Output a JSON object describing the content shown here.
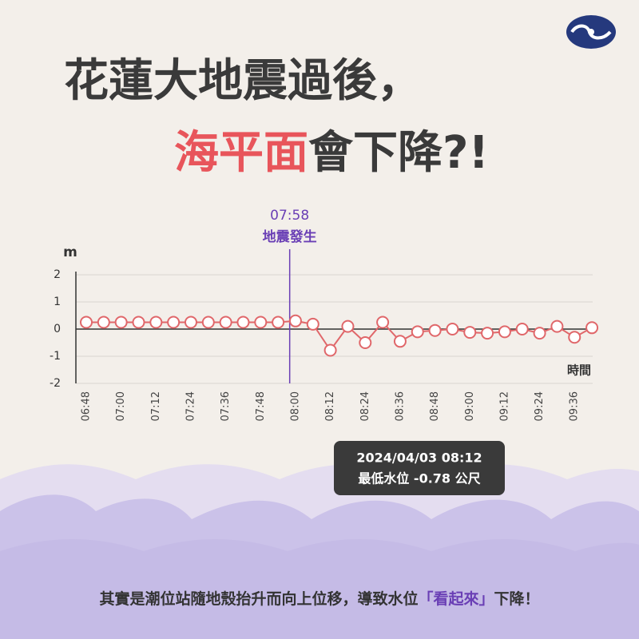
{
  "header": {
    "title_line1": "花蓮大地震過後，",
    "title_line2_highlight": "海平面",
    "title_line2_rest": "會下降?!"
  },
  "chart_data": {
    "type": "line",
    "y_label": "m",
    "x_label": "時間",
    "categories": [
      "06:48",
      null,
      "07:00",
      null,
      "07:12",
      null,
      "07:24",
      null,
      "07:36",
      null,
      "07:48",
      null,
      "08:00",
      null,
      "08:12",
      null,
      "08:24",
      null,
      "08:36",
      null,
      "08:48",
      null,
      "09:00",
      null,
      "09:12",
      null,
      "09:24",
      null,
      "09:36",
      null
    ],
    "series": [
      {
        "color": "#e0676a",
        "values": [
          0.25,
          0.25,
          0.25,
          0.25,
          0.25,
          0.25,
          0.25,
          0.25,
          0.25,
          0.25,
          0.25,
          0.25,
          0.3,
          0.18,
          -0.78,
          0.1,
          -0.5,
          0.25,
          -0.45,
          -0.1,
          -0.05,
          0,
          -0.12,
          -0.15,
          -0.1,
          0,
          -0.15,
          0.1,
          -0.3,
          0.05
        ]
      }
    ],
    "ylim": [
      -2,
      2
    ],
    "yticks": [
      -2,
      -1,
      0,
      1,
      2
    ],
    "grid": true,
    "annotation": {
      "time": "07:58",
      "label": "地震發生",
      "color": "#6a3fb5"
    },
    "tooltip": {
      "line1": "2024/04/03 08:12",
      "line2": "最低水位 -0.78 公尺"
    }
  },
  "footer": {
    "text_main": "其實是潮位站隨地殼抬升而向上位移，導致水位",
    "text_highlight": "「看起來」",
    "text_end": "下降！"
  }
}
